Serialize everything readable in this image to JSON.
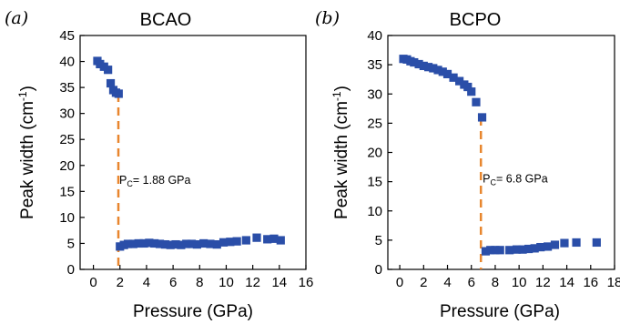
{
  "chart_data": [
    {
      "type": "scatter",
      "panel_label": "(a)",
      "title": "BCAO",
      "xlabel": "Pressure (GPa)",
      "ylabel_main": "Peak width (cm",
      "ylabel_sup": "-1",
      "ylabel_close": ")",
      "xlim": [
        -1,
        16
      ],
      "ylim": [
        0,
        45
      ],
      "xticks": [
        0,
        2,
        4,
        6,
        8,
        10,
        12,
        14,
        16
      ],
      "yticks": [
        0,
        5,
        10,
        15,
        20,
        25,
        30,
        35,
        40,
        45
      ],
      "marker_color": "#2a4ea8",
      "line_color": "#e8862e",
      "transition_x": 1.88,
      "transition_ymax": 33.8,
      "annotation_p": "P",
      "annotation_sub": "C",
      "annotation_rest": "= 1.88 GPa",
      "annotation_at": [
        1.95,
        16.5
      ],
      "series": [
        {
          "x": [
            0.3,
            0.5,
            0.8,
            1.1,
            1.3,
            1.5,
            1.7,
            1.9,
            2.0,
            2.3,
            2.6,
            3.0,
            3.4,
            3.8,
            4.2,
            4.6,
            5.0,
            5.4,
            5.8,
            6.2,
            6.6,
            7.0,
            7.4,
            7.8,
            8.3,
            8.8,
            9.3,
            9.8,
            10.3,
            10.8,
            11.5,
            12.3,
            13.1,
            13.6,
            14.1
          ],
          "y": [
            40.1,
            39.5,
            39.0,
            38.4,
            35.8,
            34.5,
            34.0,
            33.8,
            4.4,
            4.7,
            4.9,
            4.9,
            5.0,
            5.0,
            5.1,
            5.0,
            4.9,
            4.8,
            4.7,
            4.8,
            4.7,
            4.9,
            4.9,
            4.8,
            5.0,
            4.9,
            4.8,
            5.2,
            5.3,
            5.4,
            5.6,
            6.1,
            5.8,
            5.9,
            5.6
          ]
        }
      ]
    },
    {
      "type": "scatter",
      "panel_label": "(b)",
      "title": "BCPO",
      "xlabel": "Pressure (GPa)",
      "ylabel_main": "Peak width (cm",
      "ylabel_sup": "-1",
      "ylabel_close": ")",
      "xlim": [
        -1,
        18
      ],
      "ylim": [
        0,
        40
      ],
      "xticks": [
        0,
        2,
        4,
        6,
        8,
        10,
        12,
        14,
        16,
        18
      ],
      "yticks": [
        0,
        5,
        10,
        15,
        20,
        25,
        30,
        35,
        40
      ],
      "marker_color": "#2a4ea8",
      "line_color": "#e8862e",
      "transition_x": 6.8,
      "transition_ymax": 26.0,
      "annotation_p": "P",
      "annotation_sub": "C",
      "annotation_rest": "= 6.8 GPa",
      "annotation_at": [
        6.95,
        14.9
      ],
      "series": [
        {
          "x": [
            0.3,
            0.6,
            0.9,
            1.2,
            1.6,
            2.0,
            2.4,
            2.8,
            3.2,
            3.6,
            4.0,
            4.5,
            5.0,
            5.4,
            5.7,
            6.0,
            6.4,
            6.9,
            7.2,
            7.6,
            8.0,
            8.4,
            9.2,
            9.8,
            10.3,
            10.8,
            11.3,
            11.8,
            12.4,
            13.0,
            13.8,
            14.8,
            16.5
          ],
          "y": [
            36.0,
            35.9,
            35.6,
            35.4,
            35.1,
            34.8,
            34.6,
            34.4,
            34.1,
            33.8,
            33.4,
            32.8,
            32.2,
            31.6,
            31.2,
            30.4,
            28.6,
            26.0,
            3.1,
            3.3,
            3.3,
            3.3,
            3.3,
            3.4,
            3.4,
            3.5,
            3.6,
            3.8,
            3.9,
            4.2,
            4.5,
            4.6,
            4.6
          ]
        }
      ]
    }
  ]
}
